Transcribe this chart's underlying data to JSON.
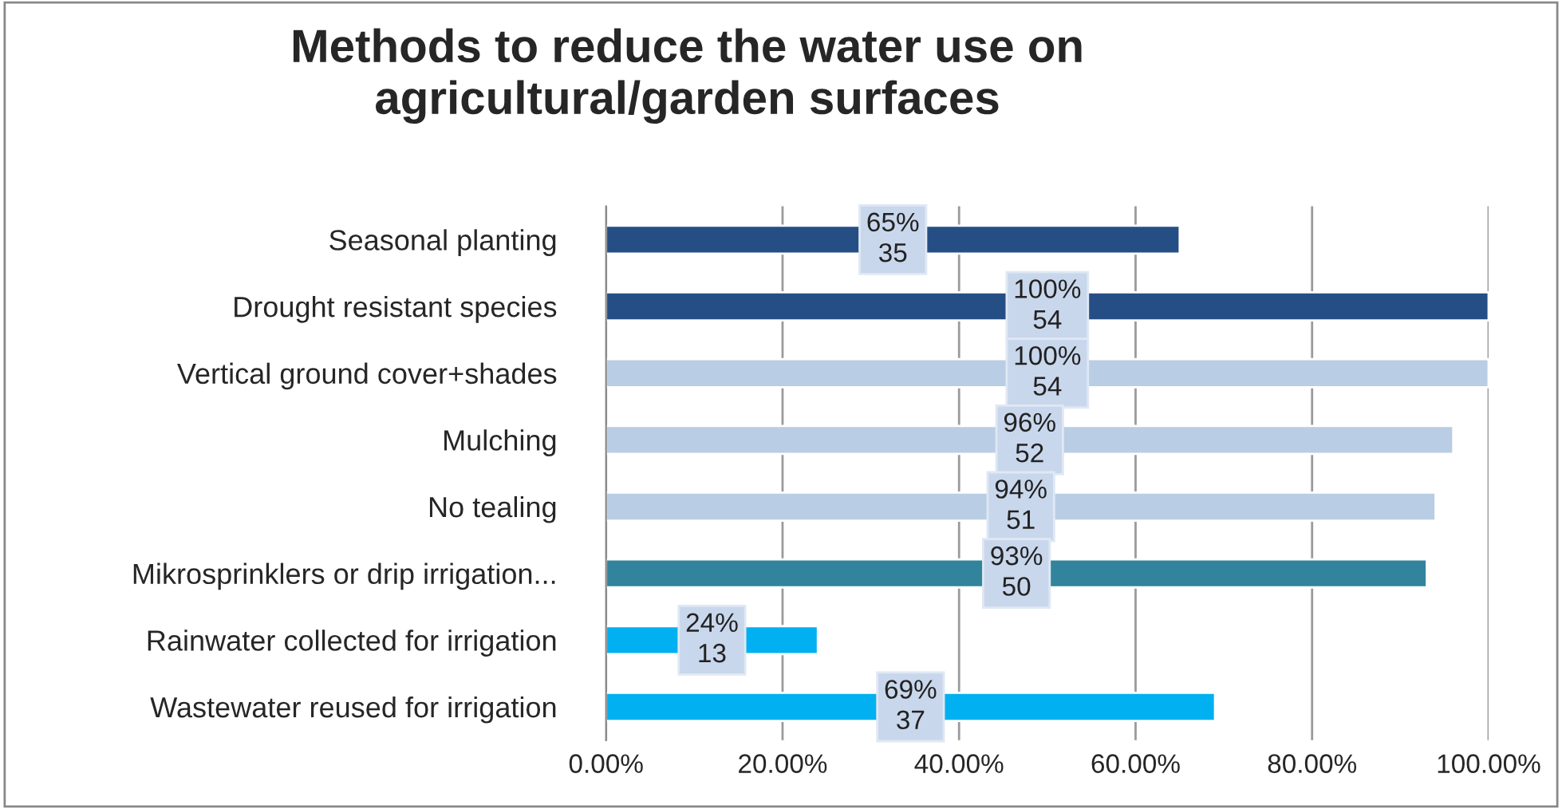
{
  "chart_data": {
    "type": "bar",
    "orientation": "horizontal",
    "title": "Methods to reduce the water use on\nagricultural/garden surfaces",
    "categories": [
      "Seasonal planting",
      "Drought resistant species",
      "Vertical ground cover+shades",
      "Mulching",
      "No tealing",
      "Mikrosprinklers or drip irrigation...",
      "Rainwater collected for irrigation",
      "Wastewater reused for irrigation"
    ],
    "values": [
      65,
      100,
      100,
      96,
      94,
      93,
      24,
      69
    ],
    "colors": [
      "#254e85",
      "#254e85",
      "#b9cde5",
      "#b9cde5",
      "#b9cde5",
      "#31849b",
      "#00b0f0",
      "#00b0f0"
    ],
    "value_labels": [
      "65%\n35",
      "100%\n54",
      "100%\n54",
      "96%\n52",
      "94%\n51",
      "93%\n50",
      "24%\n13",
      "69%\n37"
    ],
    "xlim": [
      0,
      100
    ],
    "xticks": [
      {
        "value": 0,
        "label": "0.00%"
      },
      {
        "value": 20,
        "label": "20.00%"
      },
      {
        "value": 40,
        "label": "40.00%"
      },
      {
        "value": 60,
        "label": "60.00%"
      },
      {
        "value": 80,
        "label": "80.00%"
      },
      {
        "value": 100,
        "label": "100.00%"
      }
    ],
    "grid": "x",
    "legend": false
  }
}
